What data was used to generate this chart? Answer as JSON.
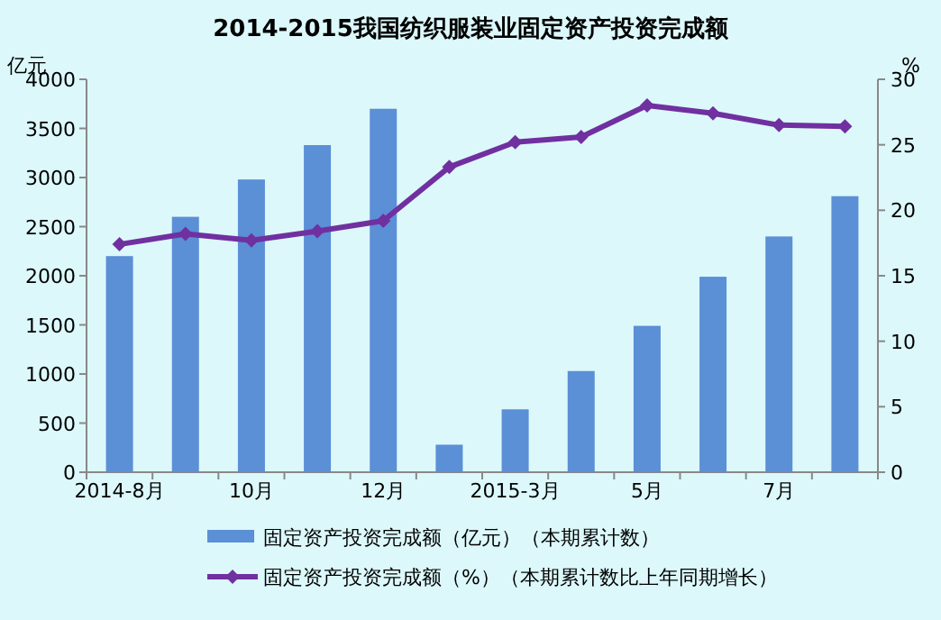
{
  "chart_data": {
    "type": "bar",
    "title": "2014-2015我国纺织服装业固定资产投资完成额",
    "ylabel": "亿元",
    "y2label": "%",
    "categories": [
      "2014-8月",
      null,
      "10月",
      null,
      "12月",
      null,
      "2015-3月",
      null,
      "5月",
      null,
      "7月",
      null
    ],
    "series": [
      {
        "name": "固定资产投资完成额（亿元）（本期累计数）",
        "color": "#5b8fd6",
        "values": [
          2200,
          2600,
          2980,
          3330,
          3700,
          280,
          640,
          1030,
          1490,
          1990,
          2400,
          2810
        ]
      },
      {
        "name": "固定资产投资完成额（%）（本期累计数比上年同期增长）",
        "color": "#7030a0",
        "type": "line",
        "axis": "y2",
        "marker": "diamond",
        "values": [
          17.4,
          18.2,
          17.7,
          18.4,
          19.2,
          23.3,
          25.2,
          25.6,
          28.0,
          27.4,
          26.5,
          26.4
        ]
      }
    ],
    "ylim": [
      0,
      4000
    ],
    "yticks": [
      0,
      500,
      1000,
      1500,
      2000,
      2500,
      3000,
      3500,
      4000
    ],
    "y2lim": [
      0,
      30
    ],
    "y2ticks": [
      0,
      5,
      10,
      15,
      20,
      25,
      30
    ],
    "legend": "bottom"
  }
}
